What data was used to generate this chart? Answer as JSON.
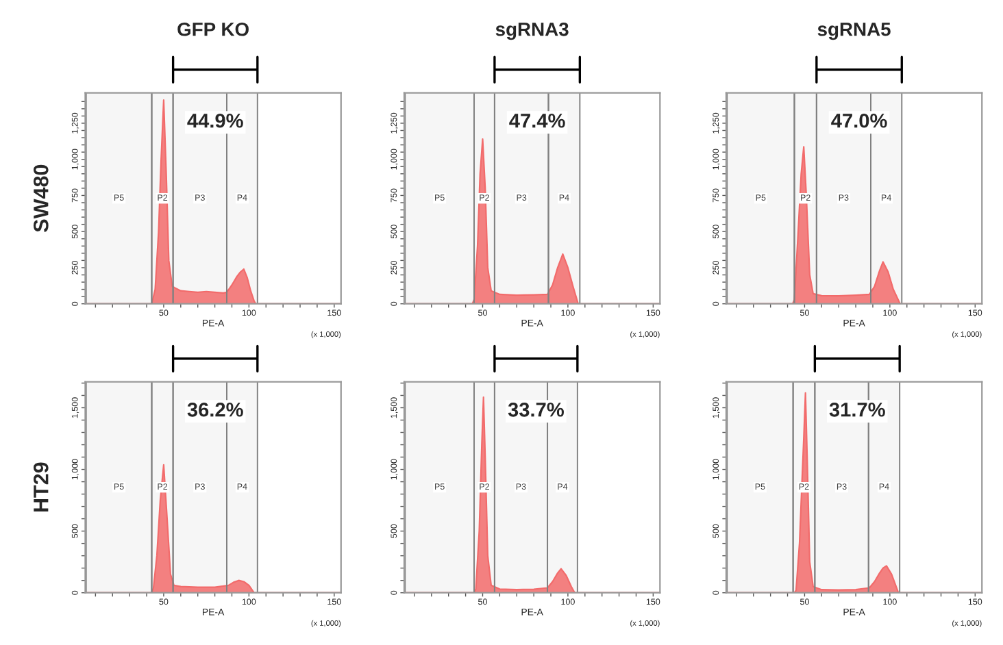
{
  "chart_data": [
    {
      "type": "area",
      "title": "GFP KO",
      "ylabel": "SW480",
      "xlabel": "PE-A",
      "annotations": [
        "44.9%",
        "(x 1,000)"
      ],
      "series": [
        {
          "color": "#f26b6b",
          "x": [
            4,
            30,
            42,
            43,
            45,
            47,
            48.5,
            50,
            51.5,
            53,
            55,
            60,
            65,
            70,
            75,
            80,
            85,
            87,
            90,
            93,
            95,
            97,
            99,
            101,
            103,
            104,
            110,
            154
          ],
          "values": [
            0,
            0,
            0,
            0,
            100,
            500,
            1000,
            1410,
            900,
            300,
            120,
            90,
            85,
            80,
            85,
            80,
            75,
            80,
            130,
            190,
            220,
            240,
            180,
            90,
            20,
            0,
            0,
            0
          ]
        }
      ],
      "bands": [
        {
          "axis": "x",
          "from": 4.5,
          "to": 43,
          "label": "P5",
          "color": "#808080"
        },
        {
          "axis": "x",
          "from": 43,
          "to": 55.5,
          "label": "P2",
          "color": "#808080"
        },
        {
          "axis": "x",
          "from": 55.5,
          "to": 87,
          "label": "P3",
          "color": "#808080"
        },
        {
          "axis": "x",
          "from": 87,
          "to": 105,
          "label": "P4",
          "color": "#808080"
        }
      ],
      "xlim": [
        4,
        154
      ],
      "xticks": [
        {
          "value": 10,
          "label": null
        },
        {
          "value": 20,
          "label": null
        },
        {
          "value": 30,
          "label": null
        },
        {
          "value": 40,
          "label": null
        },
        50,
        {
          "value": 60,
          "label": null
        },
        {
          "value": 70,
          "label": null
        },
        {
          "value": 80,
          "label": null
        },
        {
          "value": 90,
          "label": null
        },
        100,
        {
          "value": 110,
          "label": null
        },
        {
          "value": 120,
          "label": null
        },
        {
          "value": 130,
          "label": null
        },
        {
          "value": 140,
          "label": null
        },
        150
      ],
      "ylim": [
        0,
        1460
      ],
      "yticks": [
        0,
        {
          "value": 50,
          "label": null
        },
        {
          "value": 100,
          "label": null
        },
        {
          "value": 150,
          "label": null
        },
        {
          "value": 200,
          "label": null
        },
        250,
        {
          "value": 300,
          "label": null
        },
        {
          "value": 350,
          "label": null
        },
        {
          "value": 400,
          "label": null
        },
        {
          "value": 450,
          "label": null
        },
        500,
        {
          "value": 550,
          "label": null
        },
        {
          "value": 600,
          "label": null
        },
        {
          "value": 650,
          "label": null
        },
        {
          "value": 700,
          "label": null
        },
        750,
        {
          "value": 800,
          "label": null
        },
        {
          "value": 850,
          "label": null
        },
        {
          "value": 900,
          "label": null
        },
        {
          "value": 950,
          "label": null
        },
        {
          "value": 1000,
          "label": "1,000"
        },
        {
          "value": 1050,
          "label": null
        },
        {
          "value": 1100,
          "label": null
        },
        {
          "value": 1150,
          "label": null
        },
        {
          "value": 1200,
          "label": null
        },
        {
          "value": 1250,
          "label": "1,250"
        },
        {
          "value": 1300,
          "label": null
        },
        {
          "value": 1350,
          "label": null
        },
        {
          "value": 1400,
          "label": null
        }
      ]
    },
    {
      "type": "area",
      "title": "sgRNA3",
      "xlabel": "PE-A",
      "annotations": [
        "47.4%",
        "(x 1,000)"
      ],
      "series": [
        {
          "color": "#f26b6b",
          "x": [
            4,
            44,
            45,
            47,
            48.5,
            50,
            51.5,
            53,
            55,
            60,
            70,
            80,
            88,
            91,
            94,
            97,
            100,
            103,
            106,
            110,
            154
          ],
          "values": [
            0,
            0,
            30,
            400,
            900,
            1140,
            800,
            250,
            90,
            65,
            60,
            62,
            65,
            130,
            250,
            344,
            250,
            120,
            0,
            0,
            0
          ]
        }
      ],
      "bands": [
        {
          "axis": "x",
          "from": 4.5,
          "to": 45,
          "label": "P5",
          "color": "#808080"
        },
        {
          "axis": "x",
          "from": 45,
          "to": 57,
          "label": "P2",
          "color": "#808080"
        },
        {
          "axis": "x",
          "from": 57,
          "to": 88.6,
          "label": "P3",
          "color": "#808080"
        },
        {
          "axis": "x",
          "from": 88.6,
          "to": 107,
          "label": "P4",
          "color": "#808080"
        }
      ],
      "xlim": [
        4,
        154
      ],
      "xticks": [
        {
          "value": 10,
          "label": null
        },
        {
          "value": 20,
          "label": null
        },
        {
          "value": 30,
          "label": null
        },
        {
          "value": 40,
          "label": null
        },
        50,
        {
          "value": 60,
          "label": null
        },
        {
          "value": 70,
          "label": null
        },
        {
          "value": 80,
          "label": null
        },
        {
          "value": 90,
          "label": null
        },
        100,
        {
          "value": 110,
          "label": null
        },
        {
          "value": 120,
          "label": null
        },
        {
          "value": 130,
          "label": null
        },
        {
          "value": 140,
          "label": null
        },
        150
      ],
      "ylim": [
        0,
        1460
      ],
      "yticks": [
        0,
        {
          "value": 50,
          "label": null
        },
        {
          "value": 100,
          "label": null
        },
        {
          "value": 150,
          "label": null
        },
        {
          "value": 200,
          "label": null
        },
        250,
        {
          "value": 300,
          "label": null
        },
        {
          "value": 350,
          "label": null
        },
        {
          "value": 400,
          "label": null
        },
        {
          "value": 450,
          "label": null
        },
        500,
        {
          "value": 550,
          "label": null
        },
        {
          "value": 600,
          "label": null
        },
        {
          "value": 650,
          "label": null
        },
        {
          "value": 700,
          "label": null
        },
        750,
        {
          "value": 800,
          "label": null
        },
        {
          "value": 850,
          "label": null
        },
        {
          "value": 900,
          "label": null
        },
        {
          "value": 950,
          "label": null
        },
        {
          "value": 1000,
          "label": "1,000"
        },
        {
          "value": 1050,
          "label": null
        },
        {
          "value": 1100,
          "label": null
        },
        {
          "value": 1150,
          "label": null
        },
        {
          "value": 1200,
          "label": null
        },
        {
          "value": 1250,
          "label": "1,250"
        },
        {
          "value": 1300,
          "label": null
        },
        {
          "value": 1350,
          "label": null
        },
        {
          "value": 1400,
          "label": null
        }
      ]
    },
    {
      "type": "area",
      "title": "sgRNA5",
      "xlabel": "PE-A",
      "annotations": [
        "47.0%",
        "(x 1,000)"
      ],
      "series": [
        {
          "color": "#f26b6b",
          "x": [
            4,
            43,
            44,
            46,
            48,
            49.5,
            51,
            53,
            55,
            60,
            70,
            80,
            88,
            91,
            94,
            96,
            99,
            102,
            106,
            110,
            154
          ],
          "values": [
            0,
            0,
            30,
            450,
            900,
            1087,
            750,
            200,
            70,
            56,
            55,
            60,
            65,
            120,
            230,
            290,
            220,
            100,
            0,
            0,
            0
          ]
        }
      ],
      "bands": [
        {
          "axis": "x",
          "from": 4.5,
          "to": 44,
          "label": "P5",
          "color": "#808080"
        },
        {
          "axis": "x",
          "from": 44,
          "to": 57,
          "label": "P2",
          "color": "#808080"
        },
        {
          "axis": "x",
          "from": 57,
          "to": 88.8,
          "label": "P3",
          "color": "#808080"
        },
        {
          "axis": "x",
          "from": 88.8,
          "to": 107,
          "label": "P4",
          "color": "#808080"
        }
      ],
      "xlim": [
        4,
        154
      ],
      "xticks": [
        {
          "value": 10,
          "label": null
        },
        {
          "value": 20,
          "label": null
        },
        {
          "value": 30,
          "label": null
        },
        {
          "value": 40,
          "label": null
        },
        50,
        {
          "value": 60,
          "label": null
        },
        {
          "value": 70,
          "label": null
        },
        {
          "value": 80,
          "label": null
        },
        {
          "value": 90,
          "label": null
        },
        100,
        {
          "value": 110,
          "label": null
        },
        {
          "value": 120,
          "label": null
        },
        {
          "value": 130,
          "label": null
        },
        {
          "value": 140,
          "label": null
        },
        150
      ],
      "ylim": [
        0,
        1460
      ],
      "yticks": [
        0,
        {
          "value": 50,
          "label": null
        },
        {
          "value": 100,
          "label": null
        },
        {
          "value": 150,
          "label": null
        },
        {
          "value": 200,
          "label": null
        },
        250,
        {
          "value": 300,
          "label": null
        },
        {
          "value": 350,
          "label": null
        },
        {
          "value": 400,
          "label": null
        },
        {
          "value": 450,
          "label": null
        },
        500,
        {
          "value": 550,
          "label": null
        },
        {
          "value": 600,
          "label": null
        },
        {
          "value": 650,
          "label": null
        },
        {
          "value": 700,
          "label": null
        },
        750,
        {
          "value": 800,
          "label": null
        },
        {
          "value": 850,
          "label": null
        },
        {
          "value": 900,
          "label": null
        },
        {
          "value": 950,
          "label": null
        },
        {
          "value": 1000,
          "label": "1,000"
        },
        {
          "value": 1050,
          "label": null
        },
        {
          "value": 1100,
          "label": null
        },
        {
          "value": 1150,
          "label": null
        },
        {
          "value": 1200,
          "label": null
        },
        {
          "value": 1250,
          "label": "1,250"
        },
        {
          "value": 1300,
          "label": null
        },
        {
          "value": 1350,
          "label": null
        },
        {
          "value": 1400,
          "label": null
        }
      ]
    },
    {
      "type": "area",
      "ylabel": "HT29",
      "xlabel": "PE-A",
      "annotations": [
        "36.2%",
        "(x 1,000)"
      ],
      "series": [
        {
          "color": "#f26b6b",
          "x": [
            4,
            43,
            44,
            46,
            48,
            50,
            52,
            54,
            56,
            60,
            70,
            80,
            88,
            91,
            94,
            97,
            100,
            103,
            110,
            154
          ],
          "values": [
            0,
            0,
            40,
            300,
            750,
            1037,
            600,
            150,
            60,
            50,
            45,
            45,
            60,
            85,
            100,
            90,
            60,
            0,
            0,
            0
          ]
        }
      ],
      "bands": [
        {
          "axis": "x",
          "from": 4.5,
          "to": 43,
          "label": "P5",
          "color": "#808080"
        },
        {
          "axis": "x",
          "from": 43,
          "to": 55.5,
          "label": "P2",
          "color": "#808080"
        },
        {
          "axis": "x",
          "from": 55.5,
          "to": 87,
          "label": "P3",
          "color": "#808080"
        },
        {
          "axis": "x",
          "from": 87,
          "to": 105,
          "label": "P4",
          "color": "#808080"
        }
      ],
      "xlim": [
        4,
        154
      ],
      "xticks": [
        {
          "value": 10,
          "label": null
        },
        {
          "value": 20,
          "label": null
        },
        {
          "value": 30,
          "label": null
        },
        {
          "value": 40,
          "label": null
        },
        50,
        {
          "value": 60,
          "label": null
        },
        {
          "value": 70,
          "label": null
        },
        {
          "value": 80,
          "label": null
        },
        {
          "value": 90,
          "label": null
        },
        100,
        {
          "value": 110,
          "label": null
        },
        {
          "value": 120,
          "label": null
        },
        {
          "value": 130,
          "label": null
        },
        {
          "value": 140,
          "label": null
        },
        150
      ],
      "ylim": [
        0,
        1710
      ],
      "yticks": [
        0,
        {
          "value": 100,
          "label": null
        },
        {
          "value": 200,
          "label": null
        },
        {
          "value": 300,
          "label": null
        },
        {
          "value": 400,
          "label": null
        },
        500,
        {
          "value": 600,
          "label": null
        },
        {
          "value": 700,
          "label": null
        },
        {
          "value": 800,
          "label": null
        },
        {
          "value": 900,
          "label": null
        },
        {
          "value": 1000,
          "label": "1,000"
        },
        {
          "value": 1100,
          "label": null
        },
        {
          "value": 1200,
          "label": null
        },
        {
          "value": 1300,
          "label": null
        },
        {
          "value": 1400,
          "label": null
        },
        {
          "value": 1500,
          "label": "1,500"
        },
        {
          "value": 1600,
          "label": null
        },
        {
          "value": 1700,
          "label": null
        }
      ]
    },
    {
      "type": "area",
      "xlabel": "PE-A",
      "annotations": [
        "33.7%",
        "(x 1,000)"
      ],
      "series": [
        {
          "color": "#f26b6b",
          "x": [
            4,
            45,
            46,
            48,
            49.5,
            50.5,
            51.5,
            53,
            55,
            60,
            70,
            80,
            88,
            91,
            94,
            96,
            99,
            102,
            104,
            110,
            154
          ],
          "values": [
            0,
            0,
            30,
            500,
            1200,
            1586,
            1100,
            300,
            60,
            30,
            26,
            28,
            40,
            90,
            160,
            195,
            140,
            50,
            0,
            0,
            0
          ]
        }
      ],
      "bands": [
        {
          "axis": "x",
          "from": 4.5,
          "to": 45,
          "label": "P5",
          "color": "#808080"
        },
        {
          "axis": "x",
          "from": 45,
          "to": 57,
          "label": "P2",
          "color": "#808080"
        },
        {
          "axis": "x",
          "from": 57,
          "to": 88,
          "label": "P3",
          "color": "#808080"
        },
        {
          "axis": "x",
          "from": 88,
          "to": 105.6,
          "label": "P4",
          "color": "#808080"
        }
      ],
      "xlim": [
        4,
        154
      ],
      "xticks": [
        {
          "value": 10,
          "label": null
        },
        {
          "value": 20,
          "label": null
        },
        {
          "value": 30,
          "label": null
        },
        {
          "value": 40,
          "label": null
        },
        50,
        {
          "value": 60,
          "label": null
        },
        {
          "value": 70,
          "label": null
        },
        {
          "value": 80,
          "label": null
        },
        {
          "value": 90,
          "label": null
        },
        100,
        {
          "value": 110,
          "label": null
        },
        {
          "value": 120,
          "label": null
        },
        {
          "value": 130,
          "label": null
        },
        {
          "value": 140,
          "label": null
        },
        150
      ],
      "ylim": [
        0,
        1710
      ],
      "yticks": [
        0,
        {
          "value": 100,
          "label": null
        },
        {
          "value": 200,
          "label": null
        },
        {
          "value": 300,
          "label": null
        },
        {
          "value": 400,
          "label": null
        },
        500,
        {
          "value": 600,
          "label": null
        },
        {
          "value": 700,
          "label": null
        },
        {
          "value": 800,
          "label": null
        },
        {
          "value": 900,
          "label": null
        },
        {
          "value": 1000,
          "label": "1,000"
        },
        {
          "value": 1100,
          "label": null
        },
        {
          "value": 1200,
          "label": null
        },
        {
          "value": 1300,
          "label": null
        },
        {
          "value": 1400,
          "label": null
        },
        {
          "value": 1500,
          "label": "1,500"
        },
        {
          "value": 1600,
          "label": null
        },
        {
          "value": 1700,
          "label": null
        }
      ]
    },
    {
      "type": "area",
      "xlabel": "PE-A",
      "annotations": [
        "31.7%",
        "(x 1,000)"
      ],
      "series": [
        {
          "color": "#f26b6b",
          "x": [
            4,
            44,
            45,
            47,
            49.5,
            50.5,
            51.5,
            53,
            55,
            60,
            70,
            80,
            88,
            91,
            94,
            96,
            98,
            101,
            105,
            110,
            154
          ],
          "values": [
            0,
            0,
            20,
            400,
            1250,
            1620,
            1100,
            250,
            50,
            25,
            23,
            25,
            40,
            90,
            160,
            200,
            218,
            150,
            0,
            0,
            0
          ]
        }
      ],
      "bands": [
        {
          "axis": "x",
          "from": 4.5,
          "to": 43.25,
          "label": "P5",
          "color": "#808080"
        },
        {
          "axis": "x",
          "from": 43.25,
          "to": 56,
          "label": "P2",
          "color": "#808080"
        },
        {
          "axis": "x",
          "from": 56,
          "to": 87.5,
          "label": "P3",
          "color": "#808080"
        },
        {
          "axis": "x",
          "from": 87.5,
          "to": 105.75,
          "label": "P4",
          "color": "#808080"
        }
      ],
      "xlim": [
        4,
        154
      ],
      "xticks": [
        {
          "value": 10,
          "label": null
        },
        {
          "value": 20,
          "label": null
        },
        {
          "value": 30,
          "label": null
        },
        {
          "value": 40,
          "label": null
        },
        50,
        {
          "value": 60,
          "label": null
        },
        {
          "value": 70,
          "label": null
        },
        {
          "value": 80,
          "label": null
        },
        {
          "value": 90,
          "label": null
        },
        100,
        {
          "value": 110,
          "label": null
        },
        {
          "value": 120,
          "label": null
        },
        {
          "value": 130,
          "label": null
        },
        {
          "value": 140,
          "label": null
        },
        150
      ],
      "ylim": [
        0,
        1710
      ],
      "yticks": [
        0,
        {
          "value": 100,
          "label": null
        },
        {
          "value": 200,
          "label": null
        },
        {
          "value": 300,
          "label": null
        },
        {
          "value": 400,
          "label": null
        },
        500,
        {
          "value": 600,
          "label": null
        },
        {
          "value": 700,
          "label": null
        },
        {
          "value": 800,
          "label": null
        },
        {
          "value": 900,
          "label": null
        },
        {
          "value": 1000,
          "label": "1,000"
        },
        {
          "value": 1100,
          "label": null
        },
        {
          "value": 1200,
          "label": null
        },
        {
          "value": 1300,
          "label": null
        },
        {
          "value": 1400,
          "label": null
        },
        {
          "value": 1500,
          "label": "1,500"
        },
        {
          "value": 1600,
          "label": null
        },
        {
          "value": 1700,
          "label": null
        }
      ]
    }
  ]
}
